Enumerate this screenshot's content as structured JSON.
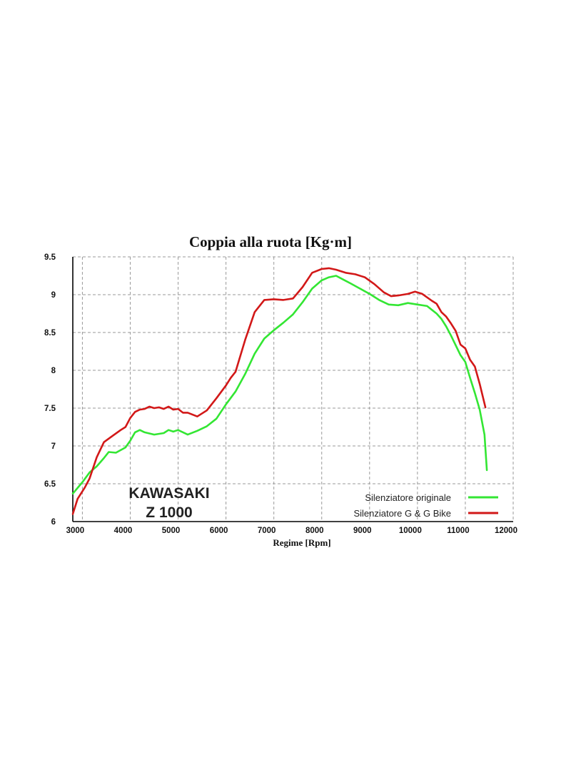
{
  "chart_data": {
    "type": "line",
    "title": "Coppia alla ruota  [Kg·m]",
    "xlabel": "Regime [Rpm]",
    "ylabel": "",
    "xlim": [
      2800,
      12000
    ],
    "ylim": [
      6,
      9.5
    ],
    "xticks": [
      "3000",
      "4000",
      "5000",
      "6000",
      "7000",
      "8000",
      "9000",
      "10000",
      "11000",
      "12000"
    ],
    "yticks": [
      "6",
      "6.5",
      "7",
      "7.5",
      "8",
      "8.5",
      "9",
      "9.5"
    ],
    "grid": true,
    "legend_position": "bottom-right",
    "annotation": {
      "line1": "KAWASAKI",
      "line2": "Z 1000"
    },
    "series": [
      {
        "name": "Silenziatore originale",
        "color": "#33e633",
        "x": [
          2800,
          3000,
          3150,
          3300,
          3450,
          3550,
          3700,
          3900,
          4000,
          4100,
          4200,
          4300,
          4500,
          4700,
          4800,
          4900,
          5000,
          5200,
          5400,
          5600,
          5800,
          6000,
          6200,
          6400,
          6600,
          6800,
          7000,
          7200,
          7400,
          7600,
          7800,
          8000,
          8150,
          8300,
          8450,
          8600,
          8800,
          9000,
          9200,
          9400,
          9600,
          9800,
          10000,
          10200,
          10300,
          10400,
          10500,
          10600,
          10700,
          10800,
          10900,
          11000,
          11100,
          11200,
          11300,
          11400,
          11450
        ],
        "y": [
          6.37,
          6.52,
          6.65,
          6.73,
          6.84,
          6.92,
          6.91,
          6.98,
          7.07,
          7.18,
          7.21,
          7.18,
          7.15,
          7.17,
          7.21,
          7.19,
          7.21,
          7.15,
          7.2,
          7.26,
          7.36,
          7.55,
          7.72,
          7.95,
          8.22,
          8.42,
          8.53,
          8.63,
          8.74,
          8.9,
          9.08,
          9.19,
          9.23,
          9.25,
          9.2,
          9.15,
          9.08,
          9.01,
          8.93,
          8.87,
          8.86,
          8.89,
          8.87,
          8.85,
          8.8,
          8.75,
          8.68,
          8.58,
          8.46,
          8.33,
          8.2,
          8.11,
          7.9,
          7.7,
          7.48,
          7.15,
          6.68
        ]
      },
      {
        "name": "Silenziatore G & G Bike",
        "color": "#d21818",
        "x": [
          2800,
          2900,
          3050,
          3150,
          3300,
          3450,
          3600,
          3800,
          3900,
          4000,
          4100,
          4200,
          4300,
          4400,
          4500,
          4600,
          4700,
          4800,
          4900,
          5000,
          5100,
          5200,
          5400,
          5600,
          5800,
          6000,
          6100,
          6200,
          6400,
          6600,
          6800,
          7000,
          7200,
          7400,
          7600,
          7800,
          8000,
          8150,
          8300,
          8500,
          8700,
          8900,
          9100,
          9300,
          9450,
          9600,
          9800,
          9950,
          10100,
          10300,
          10400,
          10500,
          10600,
          10700,
          10800,
          10900,
          11000,
          11100,
          11200,
          11300,
          11420
        ],
        "y": [
          6.1,
          6.3,
          6.45,
          6.57,
          6.85,
          7.05,
          7.12,
          7.21,
          7.25,
          7.37,
          7.45,
          7.48,
          7.49,
          7.52,
          7.5,
          7.51,
          7.49,
          7.52,
          7.48,
          7.49,
          7.44,
          7.44,
          7.39,
          7.47,
          7.63,
          7.8,
          7.9,
          7.98,
          8.4,
          8.77,
          8.93,
          8.94,
          8.93,
          8.95,
          9.1,
          9.29,
          9.34,
          9.35,
          9.33,
          9.29,
          9.27,
          9.23,
          9.14,
          9.03,
          8.98,
          8.99,
          9.01,
          9.04,
          9.01,
          8.92,
          8.88,
          8.77,
          8.71,
          8.62,
          8.52,
          8.34,
          8.29,
          8.14,
          8.05,
          7.82,
          7.51
        ]
      }
    ]
  }
}
